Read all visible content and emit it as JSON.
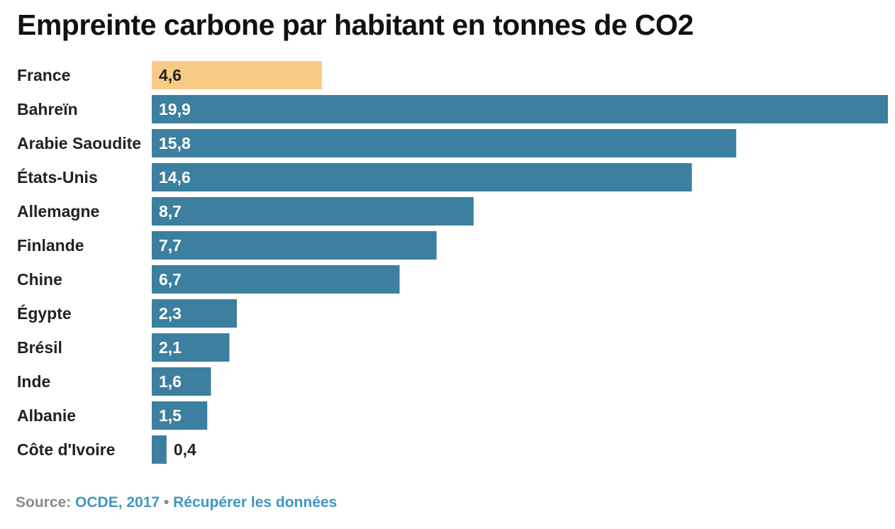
{
  "chart_data": {
    "type": "bar",
    "orientation": "horizontal",
    "title": "Empreinte carbone par habitant en tonnes de CO2",
    "categories": [
      "France",
      "Bahreïn",
      "Arabie Saoudite",
      "États-Unis",
      "Allemagne",
      "Finlande",
      "Chine",
      "Égypte",
      "Brésil",
      "Inde",
      "Albanie",
      "Côte d'Ivoire"
    ],
    "values": [
      4.6,
      19.9,
      15.8,
      14.6,
      8.7,
      7.7,
      6.7,
      2.3,
      2.1,
      1.6,
      1.5,
      0.4
    ],
    "value_labels": [
      "4,6",
      "19,9",
      "15,8",
      "14,6",
      "8,7",
      "7,7",
      "6,7",
      "2,3",
      "2,1",
      "1,6",
      "1,5",
      "0,4"
    ],
    "xlim": [
      0,
      19.9
    ],
    "highlight": "France",
    "colors": {
      "highlight": "#f7cb86",
      "default": "#3c7f9f"
    }
  },
  "footer": {
    "source_prefix": "Source:",
    "source_link": "OCDE, 2017",
    "separator": "•",
    "download_link": "Récupérer les données"
  }
}
